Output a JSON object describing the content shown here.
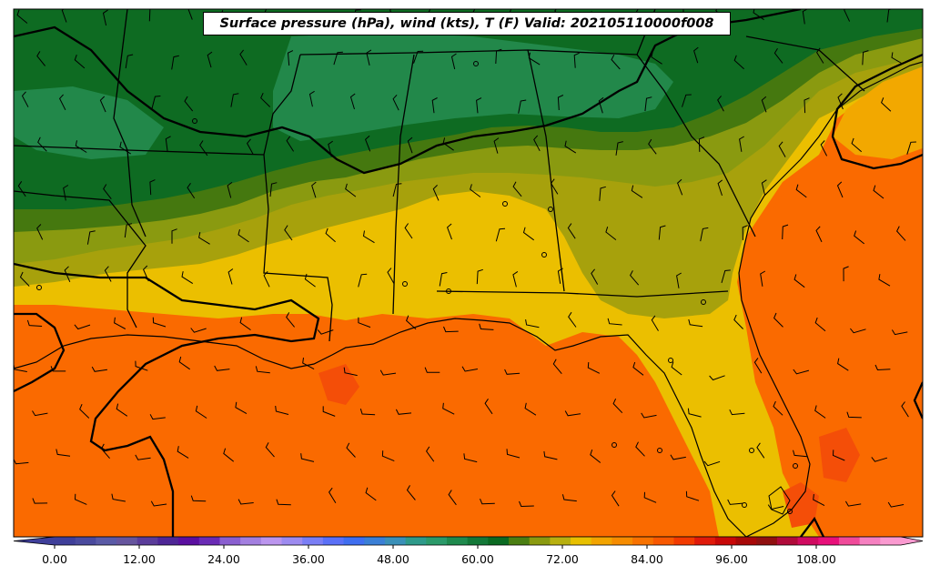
{
  "title": "Surface pressure (hPa), wind (kts), T (F) Valid: 202105110000f008",
  "colorbar": {
    "tick_labels": [
      "0.00",
      "12.00",
      "24.00",
      "36.00",
      "48.00",
      "60.00",
      "72.00",
      "84.00",
      "96.00",
      "108.00"
    ],
    "tick_values": [
      0,
      12,
      24,
      36,
      48,
      60,
      72,
      84,
      96,
      108
    ],
    "range": [
      0,
      120
    ],
    "colors": [
      "#3f3f9a",
      "#4a4a9e",
      "#5a5aa6",
      "#66559e",
      "#5a3c9a",
      "#4e2696",
      "#5a0fa0",
      "#6a2bb5",
      "#8a5fd0",
      "#a37fe0",
      "#bb95ee",
      "#9d8bf0",
      "#7a7ef5",
      "#5a70f7",
      "#3f6ef0",
      "#3a7fd6",
      "#3a90b8",
      "#2e9a8a",
      "#2b9a6a",
      "#1f8a4e",
      "#137838",
      "#0a6a22",
      "#4a7e12",
      "#8a9a10",
      "#b8b010",
      "#e8c000",
      "#f2a400",
      "#f68c00",
      "#f87200",
      "#f85800",
      "#f23a00",
      "#e01a0a",
      "#c80808",
      "#a80808",
      "#901010",
      "#b00a3a",
      "#d00a60",
      "#e8107a",
      "#f04a9a",
      "#f580c0",
      "#fa9ad0"
    ]
  },
  "map_colors": {
    "t_lt_58": "#0e6b22",
    "t_58_60": "#22884a",
    "t_60_62": "#45780f",
    "t_62_66": "#8a9a10",
    "t_66_70": "#a7a10c",
    "t_70_72": "#ebbf00",
    "t_72_76": "#f2a800",
    "t_76_80": "#fa6a00",
    "t_gt_80": "#f44e08",
    "boundary": "#000000"
  }
}
